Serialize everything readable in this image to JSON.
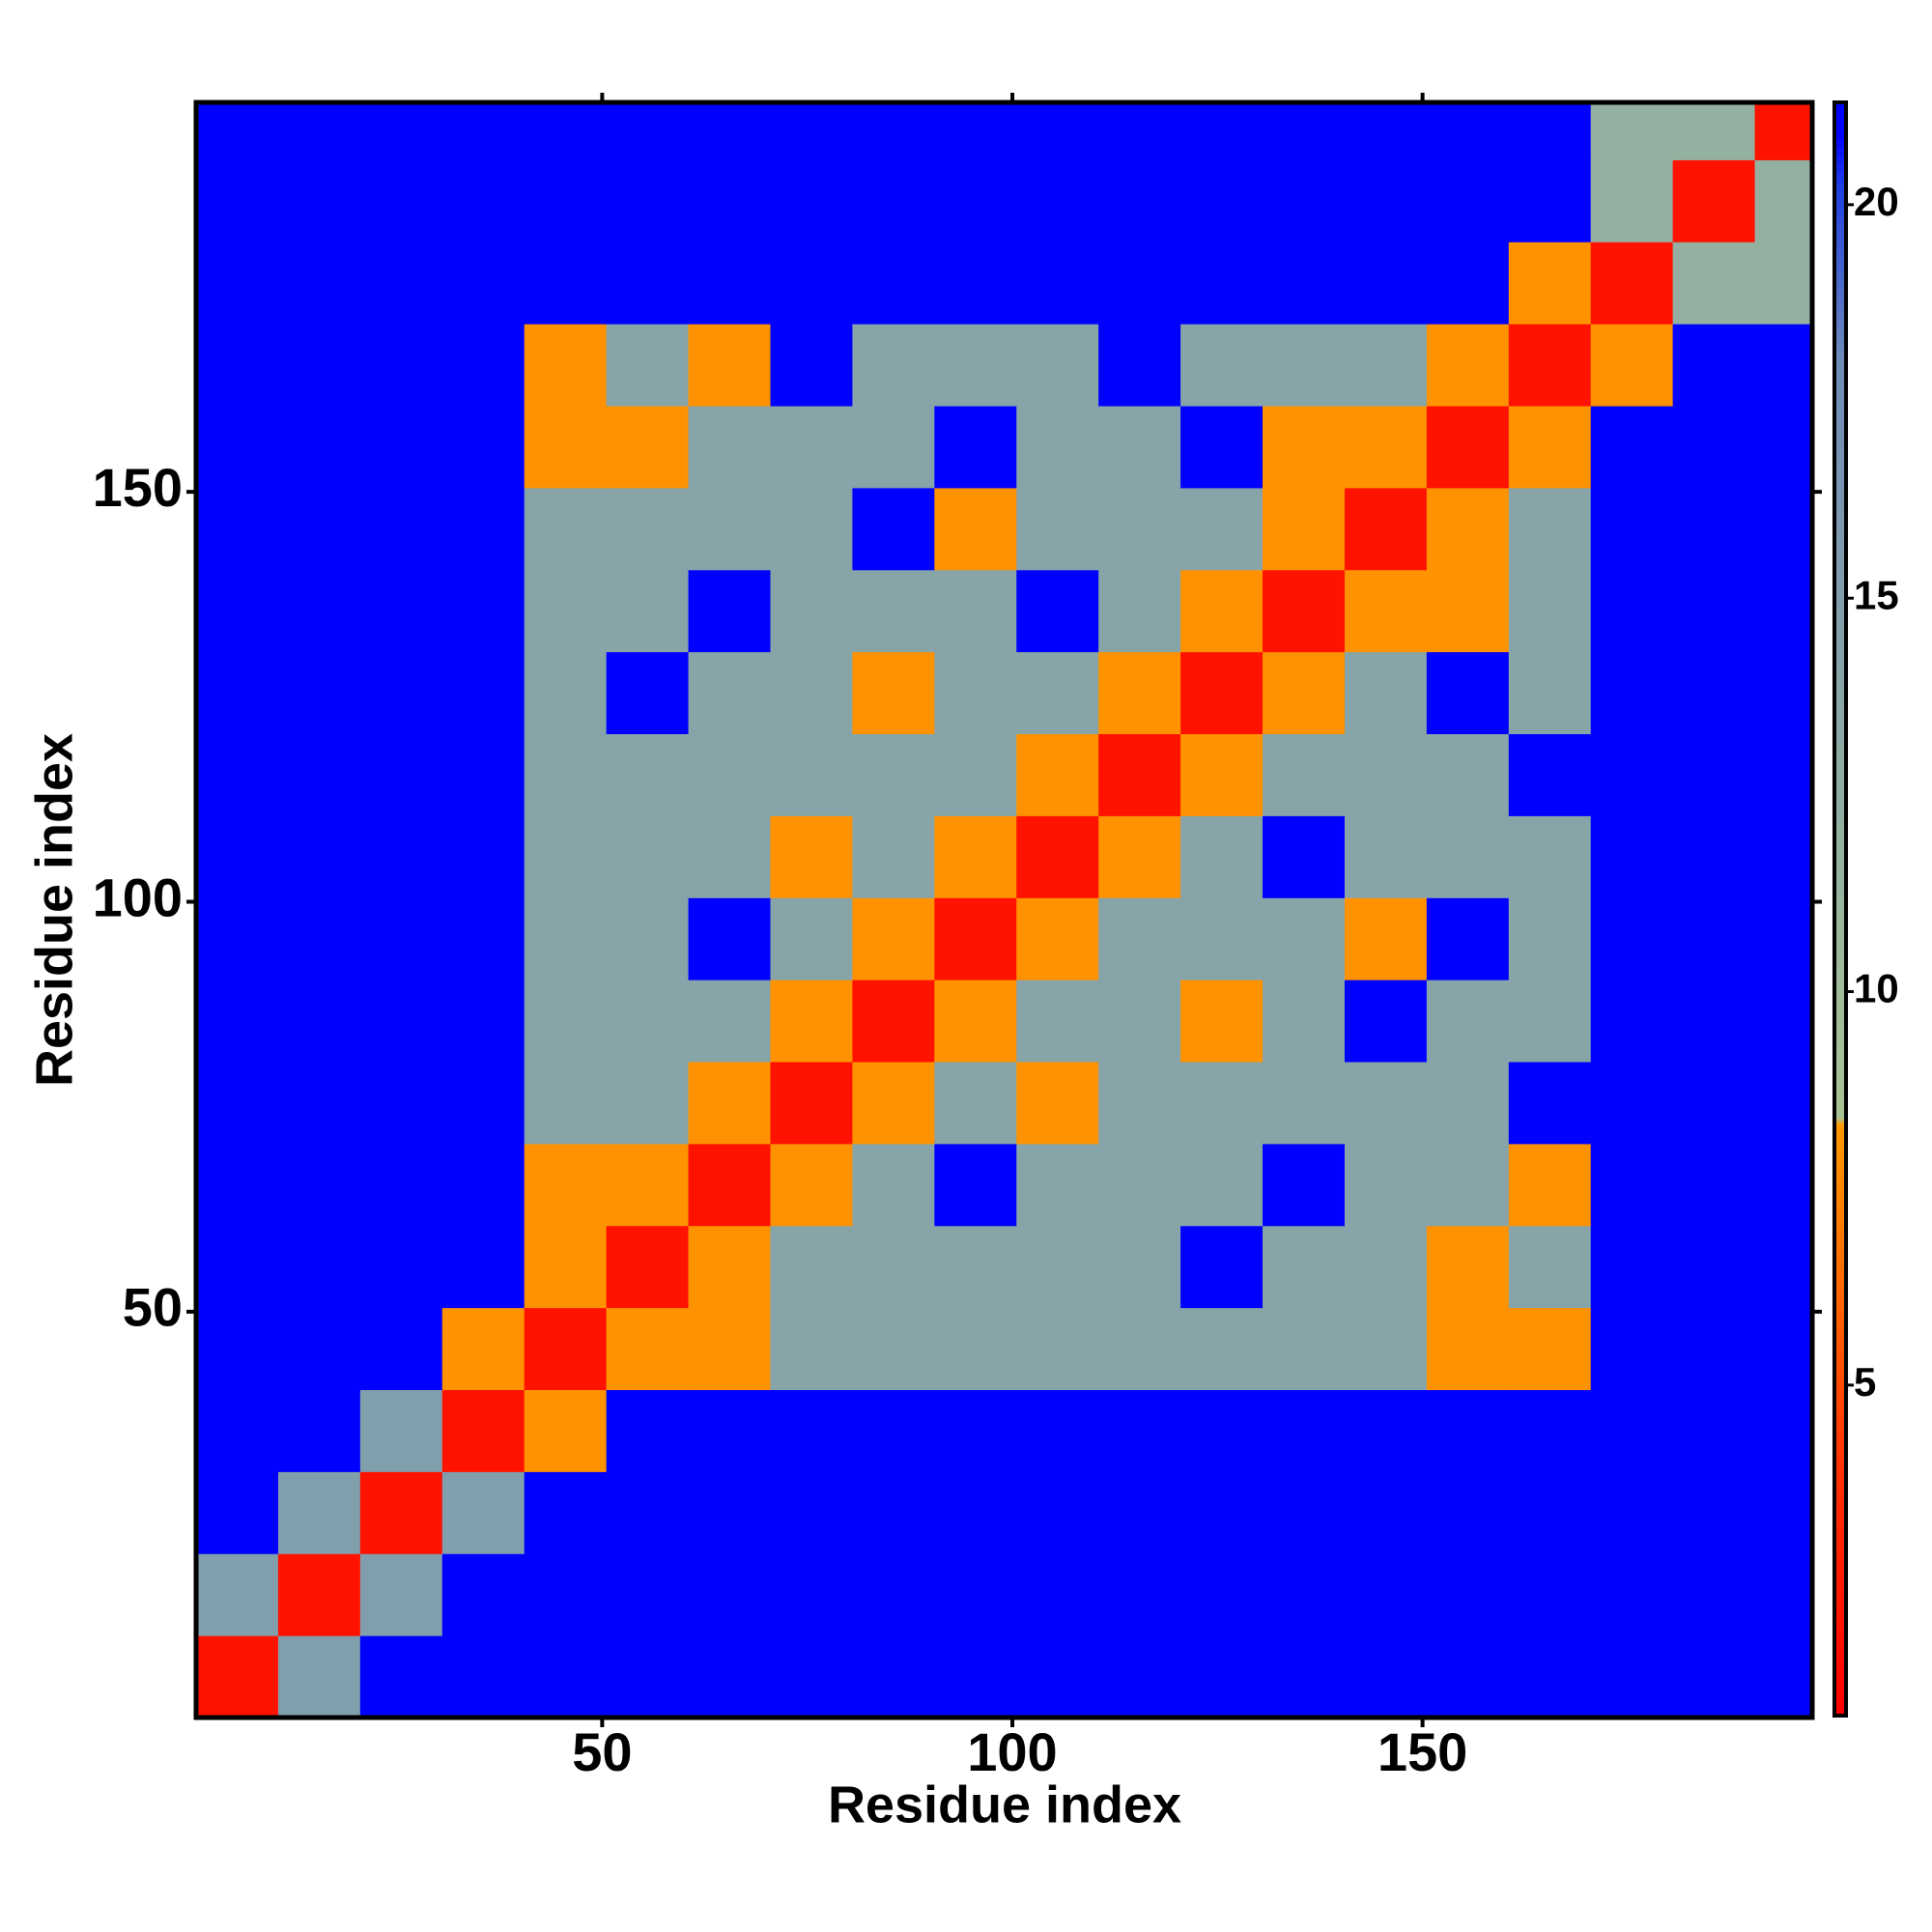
{
  "chart_data": {
    "type": "heatmap",
    "xlabel": "Residue index",
    "ylabel": "Residue index",
    "xlim": [
      0.5,
      197.5
    ],
    "ylim": [
      0.5,
      197.5
    ],
    "xticks": [
      50,
      100,
      150
    ],
    "yticks": [
      50,
      100,
      150
    ],
    "bins": [
      0.5,
      10.5,
      20.5,
      30.5,
      40.5,
      50.5,
      60.5,
      70.5,
      80.5,
      90.5,
      100.5,
      110.5,
      120.5,
      130.5,
      140.5,
      150.5,
      160.5,
      170.5,
      180.5,
      190.5,
      197.5
    ],
    "z": [
      [
        2,
        15,
        21,
        21,
        21,
        21,
        21,
        21,
        21,
        21,
        21,
        21,
        21,
        21,
        21,
        21,
        21,
        21,
        21,
        21
      ],
      [
        15,
        2,
        15,
        21,
        21,
        21,
        21,
        21,
        21,
        21,
        21,
        21,
        21,
        21,
        21,
        21,
        21,
        21,
        21,
        21
      ],
      [
        21,
        15,
        2,
        15,
        21,
        21,
        21,
        21,
        21,
        21,
        21,
        21,
        21,
        21,
        21,
        21,
        21,
        21,
        21,
        21
      ],
      [
        21,
        21,
        15,
        2,
        8,
        21,
        21,
        21,
        21,
        21,
        21,
        21,
        21,
        21,
        21,
        21,
        21,
        21,
        21,
        21
      ],
      [
        21,
        21,
        21,
        8,
        2,
        8,
        8,
        14,
        14,
        14,
        14,
        14,
        14,
        14,
        14,
        8,
        8,
        21,
        21,
        21
      ],
      [
        21,
        21,
        21,
        21,
        8,
        2,
        8,
        14,
        14,
        14,
        14,
        14,
        21,
        14,
        14,
        8,
        14,
        21,
        21,
        21
      ],
      [
        21,
        21,
        21,
        21,
        8,
        8,
        2,
        8,
        14,
        21,
        14,
        14,
        14,
        21,
        14,
        14,
        8,
        21,
        21,
        21
      ],
      [
        21,
        21,
        21,
        21,
        14,
        14,
        8,
        2,
        8,
        14,
        8,
        14,
        14,
        14,
        14,
        14,
        21,
        21,
        21,
        21
      ],
      [
        21,
        21,
        21,
        21,
        14,
        14,
        14,
        8,
        2,
        8,
        14,
        14,
        8,
        14,
        21,
        14,
        14,
        21,
        21,
        21
      ],
      [
        21,
        21,
        21,
        21,
        14,
        14,
        21,
        14,
        8,
        2,
        8,
        14,
        14,
        14,
        8,
        21,
        14,
        21,
        21,
        21
      ],
      [
        21,
        21,
        21,
        21,
        14,
        14,
        14,
        8,
        14,
        8,
        2,
        8,
        14,
        21,
        14,
        14,
        14,
        21,
        21,
        21
      ],
      [
        21,
        21,
        21,
        21,
        14,
        14,
        14,
        14,
        14,
        14,
        8,
        2,
        8,
        14,
        14,
        14,
        21,
        21,
        21,
        21
      ],
      [
        21,
        21,
        21,
        21,
        14,
        21,
        14,
        14,
        8,
        14,
        14,
        8,
        2,
        8,
        14,
        21,
        14,
        21,
        21,
        21
      ],
      [
        21,
        21,
        21,
        21,
        14,
        14,
        21,
        14,
        14,
        14,
        21,
        14,
        8,
        2,
        8,
        8,
        14,
        21,
        21,
        21
      ],
      [
        21,
        21,
        21,
        21,
        14,
        14,
        14,
        14,
        21,
        8,
        14,
        14,
        14,
        8,
        2,
        8,
        14,
        21,
        21,
        21
      ],
      [
        21,
        21,
        21,
        21,
        8,
        8,
        14,
        14,
        14,
        21,
        14,
        14,
        21,
        8,
        8,
        2,
        8,
        21,
        21,
        21
      ],
      [
        21,
        21,
        21,
        21,
        8,
        14,
        8,
        21,
        14,
        14,
        14,
        21,
        14,
        14,
        14,
        8,
        2,
        8,
        21,
        21
      ],
      [
        21,
        21,
        21,
        21,
        21,
        21,
        21,
        21,
        21,
        21,
        21,
        21,
        21,
        21,
        21,
        21,
        8,
        2,
        12,
        12
      ],
      [
        21,
        21,
        21,
        21,
        21,
        21,
        21,
        21,
        21,
        21,
        21,
        21,
        21,
        21,
        21,
        21,
        21,
        12,
        2,
        12
      ],
      [
        21,
        21,
        21,
        21,
        21,
        21,
        21,
        21,
        21,
        21,
        21,
        21,
        21,
        21,
        21,
        21,
        21,
        12,
        12,
        2
      ]
    ],
    "zlim": [
      0.8,
      21.3
    ],
    "zticks": [
      5,
      10,
      15,
      20
    ],
    "colorscale": [
      [
        0.8,
        "#ff0000"
      ],
      [
        4,
        "#ff3300"
      ],
      [
        8.3,
        "#ff9900"
      ],
      [
        8.4,
        "#a8c494"
      ],
      [
        12,
        "#93b0a0"
      ],
      [
        18,
        "#6f8cb8"
      ],
      [
        20.2,
        "#2040e0"
      ],
      [
        20.9,
        "#0000ff"
      ],
      [
        21.3,
        "#0000ff"
      ]
    ]
  }
}
